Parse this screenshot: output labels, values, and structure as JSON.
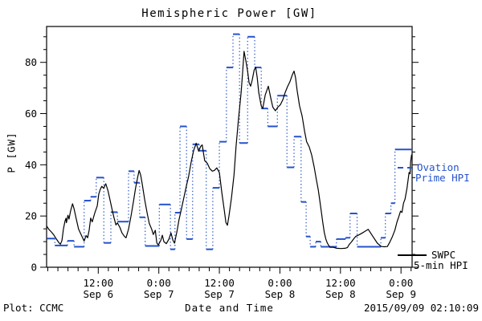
{
  "title": "Hemispheric Power [GW]",
  "y_axis": {
    "label": "P [GW]",
    "major_ticks": [
      0,
      20,
      40,
      60,
      80
    ],
    "minor_step": 5,
    "range": [
      0,
      94
    ]
  },
  "x_axis": {
    "label": "Date and Time",
    "range_hours": [
      1.76,
      74.2
    ],
    "minor_step_hours": 2,
    "major_ticks": [
      {
        "hours": 12,
        "time": "12:00",
        "date": "Sep 6"
      },
      {
        "hours": 24,
        "time": "0:00",
        "date": "Sep 7"
      },
      {
        "hours": 36,
        "time": "12:00",
        "date": "Sep 7"
      },
      {
        "hours": 48,
        "time": "0:00",
        "date": "Sep 8"
      },
      {
        "hours": 60,
        "time": "12:00",
        "date": "Sep 8"
      },
      {
        "hours": 72,
        "time": "0:00",
        "date": "Sep 9"
      }
    ]
  },
  "legend": {
    "ovation": {
      "line1": "Ovation",
      "line2": "Prime HPI",
      "color": "#2553cc"
    },
    "swpc": {
      "line1": "SWPC",
      "line2": "5-min HPI",
      "color": "#000000"
    }
  },
  "footer": {
    "credit": "Plot: CCMC",
    "timestamp": "2015/09/09 02:10:09"
  },
  "colors": {
    "ovation_blue": "#2553cc",
    "swpc_black": "#000000",
    "frame": "#000000"
  },
  "chart_data": {
    "type": "line",
    "title": "Hemispheric Power [GW]",
    "xlabel": "Date and Time",
    "ylabel": "P [GW]",
    "ylim": [
      0,
      94
    ],
    "xlim_hours_since_sep6_0000": [
      1.76,
      74.2
    ],
    "grid": false,
    "legend_position": "right-outside",
    "series": [
      {
        "name": "SWPC 5-min HPI",
        "color": "#000000",
        "style": "solid",
        "units": "GW",
        "points": [
          [
            1.8,
            16
          ],
          [
            2.2,
            14.8
          ],
          [
            2.7,
            13.8
          ],
          [
            3.2,
            12.6
          ],
          [
            3.7,
            11
          ],
          [
            4.2,
            9.6
          ],
          [
            4.5,
            9
          ],
          [
            4.8,
            10.4
          ],
          [
            5.1,
            15
          ],
          [
            5.4,
            18
          ],
          [
            5.6,
            19.1
          ],
          [
            5.7,
            17.4
          ],
          [
            6.0,
            20.3
          ],
          [
            6.2,
            18.8
          ],
          [
            6.5,
            21.9
          ],
          [
            6.9,
            24.8
          ],
          [
            7.2,
            22.8
          ],
          [
            7.6,
            19.2
          ],
          [
            8.1,
            14.9
          ],
          [
            8.8,
            11.9
          ],
          [
            9.2,
            10.2
          ],
          [
            9.6,
            12.4
          ],
          [
            9.9,
            11.5
          ],
          [
            10.2,
            14.5
          ],
          [
            10.5,
            19.2
          ],
          [
            10.8,
            17.7
          ],
          [
            11.3,
            21.1
          ],
          [
            11.8,
            24
          ],
          [
            12.1,
            28.5
          ],
          [
            12.4,
            30.4
          ],
          [
            12.7,
            31.6
          ],
          [
            13.1,
            30.8
          ],
          [
            13.4,
            32.3
          ],
          [
            13.5,
            32.6
          ],
          [
            13.9,
            30
          ],
          [
            14.3,
            26.5
          ],
          [
            14.8,
            22
          ],
          [
            15.1,
            19.5
          ],
          [
            15.5,
            16.5
          ],
          [
            15.8,
            17.3
          ],
          [
            16.3,
            15.5
          ],
          [
            16.7,
            13.4
          ],
          [
            17.2,
            12
          ],
          [
            17.5,
            11.5
          ],
          [
            18.0,
            14.9
          ],
          [
            18.5,
            20
          ],
          [
            19.0,
            26
          ],
          [
            19.4,
            31
          ],
          [
            19.8,
            35
          ],
          [
            20.1,
            37.8
          ],
          [
            20.4,
            36
          ],
          [
            20.7,
            32.6
          ],
          [
            21.2,
            26.4
          ],
          [
            21.7,
            21.1
          ],
          [
            22.1,
            17.1
          ],
          [
            22.6,
            14.8
          ],
          [
            22.9,
            12.8
          ],
          [
            23.3,
            14.4
          ],
          [
            23.6,
            9.5
          ],
          [
            23.9,
            8.7
          ],
          [
            24.4,
            10.5
          ],
          [
            24.7,
            12.5
          ],
          [
            25.0,
            10
          ],
          [
            25.5,
            9.2
          ],
          [
            26.0,
            11
          ],
          [
            26.4,
            13.4
          ],
          [
            26.8,
            10.5
          ],
          [
            27.1,
            9.4
          ],
          [
            27.6,
            14
          ],
          [
            28.0,
            18.5
          ],
          [
            28.5,
            23
          ],
          [
            29.0,
            27.5
          ],
          [
            29.5,
            32
          ],
          [
            29.9,
            35.3
          ],
          [
            30.4,
            41
          ],
          [
            30.9,
            45.5
          ],
          [
            31.4,
            48.4
          ],
          [
            31.9,
            45.3
          ],
          [
            32.3,
            47.2
          ],
          [
            32.6,
            47.8
          ],
          [
            33.1,
            41.6
          ],
          [
            33.6,
            40.6
          ],
          [
            34.1,
            38.5
          ],
          [
            34.6,
            37.5
          ],
          [
            35.0,
            37.8
          ],
          [
            35.5,
            38.8
          ],
          [
            36.0,
            36.9
          ],
          [
            36.5,
            29
          ],
          [
            37.0,
            22
          ],
          [
            37.3,
            17.5
          ],
          [
            37.6,
            16.4
          ],
          [
            37.9,
            20
          ],
          [
            38.4,
            27
          ],
          [
            38.9,
            36
          ],
          [
            39.3,
            47
          ],
          [
            39.8,
            58
          ],
          [
            40.3,
            68
          ],
          [
            40.6,
            76
          ],
          [
            40.9,
            84.3
          ],
          [
            41.3,
            80
          ],
          [
            41.6,
            76.6
          ],
          [
            41.9,
            72
          ],
          [
            42.2,
            70.7
          ],
          [
            42.5,
            73
          ],
          [
            42.9,
            77
          ],
          [
            43.2,
            78.1
          ],
          [
            43.5,
            74
          ],
          [
            43.8,
            68.2
          ],
          [
            44.3,
            63
          ],
          [
            44.6,
            62
          ],
          [
            45.1,
            67.3
          ],
          [
            45.4,
            69
          ],
          [
            45.7,
            70.7
          ],
          [
            46.2,
            66
          ],
          [
            46.6,
            62.5
          ],
          [
            47.1,
            61.1
          ],
          [
            47.6,
            62.5
          ],
          [
            48.1,
            63.5
          ],
          [
            48.6,
            65.5
          ],
          [
            49.0,
            68
          ],
          [
            49.5,
            70.5
          ],
          [
            50.0,
            72.5
          ],
          [
            50.5,
            75.3
          ],
          [
            50.8,
            76.6
          ],
          [
            51.1,
            74
          ],
          [
            51.4,
            69.2
          ],
          [
            51.9,
            63
          ],
          [
            52.4,
            59
          ],
          [
            52.9,
            53
          ],
          [
            53.3,
            49
          ],
          [
            53.8,
            47
          ],
          [
            54.3,
            43.8
          ],
          [
            54.8,
            39.1
          ],
          [
            55.2,
            34.4
          ],
          [
            55.6,
            30.2
          ],
          [
            55.9,
            26
          ],
          [
            56.2,
            21.9
          ],
          [
            56.5,
            17.5
          ],
          [
            56.8,
            13.5
          ],
          [
            57.1,
            11
          ],
          [
            57.4,
            9.4
          ],
          [
            57.9,
            7.8
          ],
          [
            58.5,
            7.8
          ],
          [
            59.3,
            7.4
          ],
          [
            60.1,
            7.3
          ],
          [
            60.9,
            7.4
          ],
          [
            61.4,
            7.7
          ],
          [
            61.7,
            8.8
          ],
          [
            62.2,
            9.9
          ],
          [
            62.6,
            11
          ],
          [
            63.0,
            12
          ],
          [
            63.8,
            12.8
          ],
          [
            64.6,
            13.7
          ],
          [
            65.5,
            14.8
          ],
          [
            66.5,
            11.8
          ],
          [
            67.3,
            9.4
          ],
          [
            68.1,
            8.1
          ],
          [
            68.7,
            8.0
          ],
          [
            69.3,
            8.1
          ],
          [
            69.8,
            9.9
          ],
          [
            70.3,
            12
          ],
          [
            70.8,
            14.5
          ],
          [
            71.2,
            17.7
          ],
          [
            71.6,
            20
          ],
          [
            71.9,
            21.9
          ],
          [
            72.2,
            21.4
          ],
          [
            72.5,
            25
          ],
          [
            72.8,
            26.6
          ],
          [
            73.2,
            31
          ],
          [
            73.5,
            35.5
          ],
          [
            73.6,
            37
          ],
          [
            73.8,
            36.5
          ],
          [
            73.9,
            41
          ],
          [
            74.1,
            44
          ]
        ]
      },
      {
        "name": "Ovation Prime HPI",
        "color": "#2553cc",
        "style": "stepped-horizontal-with-dotted-connectors",
        "units": "GW",
        "segments": [
          [
            1.8,
            3.4,
            11.2
          ],
          [
            3.4,
            5.9,
            8.5
          ],
          [
            5.9,
            7.2,
            10.3
          ],
          [
            7.2,
            9.2,
            8
          ],
          [
            9.2,
            10.5,
            26
          ],
          [
            10.5,
            11.6,
            27.5
          ],
          [
            11.6,
            13.1,
            35
          ],
          [
            13.1,
            14.5,
            9.5
          ],
          [
            14.5,
            15.8,
            21.5
          ],
          [
            15.8,
            18.0,
            17.8
          ],
          [
            18.0,
            19.1,
            37.5
          ],
          [
            19.1,
            20.2,
            33
          ],
          [
            20.2,
            21.3,
            19.5
          ],
          [
            21.3,
            24.1,
            8.3
          ],
          [
            24.1,
            26.3,
            24.5
          ],
          [
            26.3,
            27.2,
            7
          ],
          [
            27.2,
            28.2,
            21.3
          ],
          [
            28.2,
            29.5,
            55
          ],
          [
            29.5,
            30.7,
            11
          ],
          [
            30.7,
            32.0,
            48
          ],
          [
            32.0,
            33.4,
            45.5
          ],
          [
            33.4,
            34.7,
            7
          ],
          [
            34.7,
            36.0,
            31
          ],
          [
            36.0,
            37.4,
            49
          ],
          [
            37.4,
            38.7,
            78
          ],
          [
            38.7,
            40.0,
            91
          ],
          [
            40.0,
            41.6,
            48.5
          ],
          [
            41.6,
            43.0,
            90
          ],
          [
            43.0,
            44.3,
            78
          ],
          [
            44.3,
            45.6,
            62
          ],
          [
            45.6,
            47.5,
            55
          ],
          [
            47.5,
            49.4,
            67
          ],
          [
            49.4,
            50.8,
            39
          ],
          [
            50.8,
            52.2,
            51
          ],
          [
            52.2,
            53.2,
            25.5
          ],
          [
            53.2,
            54.0,
            12
          ],
          [
            54.0,
            55.1,
            8
          ],
          [
            55.1,
            56.1,
            10
          ],
          [
            56.1,
            59.2,
            8
          ],
          [
            59.2,
            61.0,
            11
          ],
          [
            61.0,
            61.9,
            11.5
          ],
          [
            61.9,
            63.3,
            21
          ],
          [
            63.3,
            68.0,
            8
          ],
          [
            68.0,
            68.9,
            11.5
          ],
          [
            68.9,
            70.0,
            21
          ],
          [
            70.0,
            70.8,
            25
          ],
          [
            70.8,
            74.2,
            46
          ]
        ]
      }
    ]
  }
}
